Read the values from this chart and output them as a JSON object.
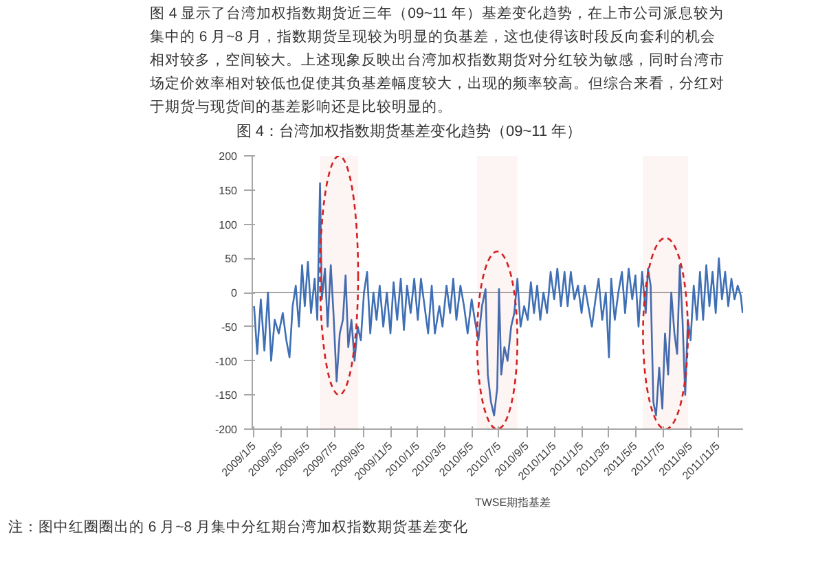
{
  "chart_data": {
    "type": "line",
    "title": "图 4：台湾加权指数期货基差变化趋势（09~11 年）",
    "annotations": [
      "图 4 显示了台湾加权指数期货近三年（09~11 年）基差变化趋势，在上市公司派息较为集中的 6 月~8 月，指数期货呈现较为明显的负基差，这也使得该时段反向套利的机会相对较多，空间较大。上述现象反映出台湾加权指数期货对分红较为敏感，同时台湾市场定价效率相对较低也促使其负基差幅度较大，出现的频率较高。但综合来看，分红对于期货与现货间的基差影响还是比较明显的。",
      "注：图中红圈圈出的 6 月~8 月集中分红期台湾加权指数期货基差变化"
    ],
    "x": [
      "2009-01-05",
      "2009-01-12",
      "2009-01-20",
      "2009-01-28",
      "2009-02-05",
      "2009-02-12",
      "2009-02-20",
      "2009-03-01",
      "2009-03-10",
      "2009-03-18",
      "2009-03-25",
      "2009-04-01",
      "2009-04-08",
      "2009-04-15",
      "2009-04-22",
      "2009-04-28",
      "2009-05-05",
      "2009-05-12",
      "2009-05-20",
      "2009-05-26",
      "2009-06-01",
      "2009-06-05",
      "2009-06-12",
      "2009-06-18",
      "2009-06-25",
      "2009-07-01",
      "2009-07-08",
      "2009-07-15",
      "2009-07-22",
      "2009-07-28",
      "2009-08-03",
      "2009-08-10",
      "2009-08-17",
      "2009-08-24",
      "2009-08-31",
      "2009-09-07",
      "2009-09-14",
      "2009-09-21",
      "2009-09-28",
      "2009-10-05",
      "2009-10-12",
      "2009-10-20",
      "2009-10-28",
      "2009-11-05",
      "2009-11-12",
      "2009-11-20",
      "2009-11-28",
      "2009-12-05",
      "2009-12-12",
      "2009-12-20",
      "2009-12-28",
      "2010-01-05",
      "2010-01-12",
      "2010-01-20",
      "2010-01-28",
      "2010-02-05",
      "2010-02-12",
      "2010-02-22",
      "2010-03-01",
      "2010-03-10",
      "2010-03-18",
      "2010-03-25",
      "2010-04-01",
      "2010-04-10",
      "2010-04-18",
      "2010-04-26",
      "2010-05-05",
      "2010-05-12",
      "2010-05-20",
      "2010-05-28",
      "2010-06-05",
      "2010-06-10",
      "2010-06-17",
      "2010-06-24",
      "2010-07-01",
      "2010-07-05",
      "2010-07-10",
      "2010-07-17",
      "2010-07-24",
      "2010-08-01",
      "2010-08-08",
      "2010-08-15",
      "2010-08-22",
      "2010-08-30",
      "2010-09-07",
      "2010-09-14",
      "2010-09-21",
      "2010-09-28",
      "2010-10-05",
      "2010-10-12",
      "2010-10-20",
      "2010-10-28",
      "2010-11-05",
      "2010-11-12",
      "2010-11-20",
      "2010-11-28",
      "2010-12-05",
      "2010-12-12",
      "2010-12-20",
      "2010-12-28",
      "2011-01-05",
      "2011-01-12",
      "2011-01-20",
      "2011-01-28",
      "2011-02-05",
      "2011-02-12",
      "2011-02-20",
      "2011-02-28",
      "2011-03-07",
      "2011-03-12",
      "2011-03-20",
      "2011-03-28",
      "2011-04-05",
      "2011-04-12",
      "2011-04-20",
      "2011-04-28",
      "2011-05-05",
      "2011-05-12",
      "2011-05-20",
      "2011-05-28",
      "2011-06-02",
      "2011-06-08",
      "2011-06-14",
      "2011-06-20",
      "2011-06-27",
      "2011-07-04",
      "2011-07-10",
      "2011-07-17",
      "2011-07-24",
      "2011-07-31",
      "2011-08-06",
      "2011-08-12",
      "2011-08-18",
      "2011-08-24",
      "2011-08-30",
      "2011-09-05",
      "2011-09-12",
      "2011-09-19",
      "2011-09-26",
      "2011-10-03",
      "2011-10-10",
      "2011-10-17",
      "2011-10-24",
      "2011-10-31",
      "2011-11-07",
      "2011-11-14",
      "2011-11-21",
      "2011-11-28",
      "2011-12-05",
      "2011-12-12",
      "2011-12-19",
      "2011-12-26",
      "2011-12-30"
    ],
    "series": [
      {
        "name": "TWSE期指基差",
        "color": "#3f6fb5",
        "values": [
          -20,
          -90,
          -10,
          -85,
          0,
          -100,
          -40,
          -60,
          -30,
          -70,
          -95,
          -20,
          10,
          -50,
          40,
          -20,
          45,
          -30,
          20,
          -40,
          160,
          -10,
          35,
          -50,
          40,
          -30,
          -130,
          -60,
          -40,
          25,
          -80,
          -40,
          -100,
          -50,
          -70,
          0,
          30,
          -60,
          0,
          -40,
          10,
          -50,
          0,
          -60,
          15,
          -40,
          20,
          -55,
          10,
          -30,
          20,
          -40,
          20,
          -20,
          -60,
          10,
          -60,
          -20,
          -50,
          10,
          -30,
          20,
          -40,
          10,
          -20,
          -60,
          -10,
          -40,
          -70,
          -20,
          5,
          -120,
          -160,
          -180,
          -140,
          5,
          -120,
          -80,
          -100,
          -50,
          -30,
          20,
          -50,
          -20,
          -40,
          15,
          -30,
          10,
          -40,
          0,
          -30,
          30,
          -10,
          35,
          -20,
          30,
          -20,
          30,
          -10,
          10,
          -30,
          10,
          -20,
          -50,
          -10,
          20,
          -40,
          0,
          -95,
          20,
          -40,
          0,
          30,
          -30,
          35,
          -10,
          25,
          -50,
          30,
          -30,
          35,
          10,
          -160,
          -180,
          -110,
          -170,
          -60,
          -120,
          0,
          -60,
          -90,
          40,
          -40,
          -150,
          -40,
          -70,
          10,
          -40,
          30,
          -40,
          40,
          -20,
          30,
          -30,
          50,
          -10,
          30,
          -20,
          20,
          -10,
          10,
          -5,
          -30
        ]
      }
    ],
    "xlim": [
      "2009-01-01",
      "2011-12-31"
    ],
    "xticks": [
      {
        "value": "2009-01-05",
        "label": "2009/1/5"
      },
      {
        "value": "2009-03-05",
        "label": "2009/3/5"
      },
      {
        "value": "2009-05-05",
        "label": "2009/5/5"
      },
      {
        "value": "2009-07-05",
        "label": "2009/7/5"
      },
      {
        "value": "2009-09-05",
        "label": "2009/9/5"
      },
      {
        "value": "2009-11-05",
        "label": "2009/11/5"
      },
      {
        "value": "2010-01-05",
        "label": "2010/1/5"
      },
      {
        "value": "2010-03-05",
        "label": "2010/3/5"
      },
      {
        "value": "2010-05-05",
        "label": "2010/5/5"
      },
      {
        "value": "2010-07-05",
        "label": "2010/7/5"
      },
      {
        "value": "2010-09-05",
        "label": "2010/9/5"
      },
      {
        "value": "2010-11-05",
        "label": "2010/11/5"
      },
      {
        "value": "2011-01-05",
        "label": "2011/1/5"
      },
      {
        "value": "2011-03-05",
        "label": "2011/3/5"
      },
      {
        "value": "2011-05-05",
        "label": "2011/5/5"
      },
      {
        "value": "2011-07-05",
        "label": "2011/7/5"
      },
      {
        "value": "2011-09-05",
        "label": "2011/9/5"
      },
      {
        "value": "2011-11-05",
        "label": "2011/11/5"
      }
    ],
    "ylim": [
      -200,
      200
    ],
    "yticks": [
      -200,
      -150,
      -100,
      -50,
      0,
      50,
      100,
      150,
      200
    ],
    "grid": false,
    "legend": "bottom",
    "ref_lines": [
      {
        "axis": "y",
        "value": 0,
        "color": "#a6a6a6"
      }
    ],
    "bands": [
      {
        "axis": "x",
        "from": "2009-06-01",
        "to": "2009-08-25",
        "color": "#d42020"
      },
      {
        "axis": "x",
        "from": "2010-05-17",
        "to": "2010-08-15",
        "color": "#d42020"
      },
      {
        "axis": "x",
        "from": "2011-05-22",
        "to": "2011-08-30",
        "color": "#d42020"
      }
    ]
  }
}
